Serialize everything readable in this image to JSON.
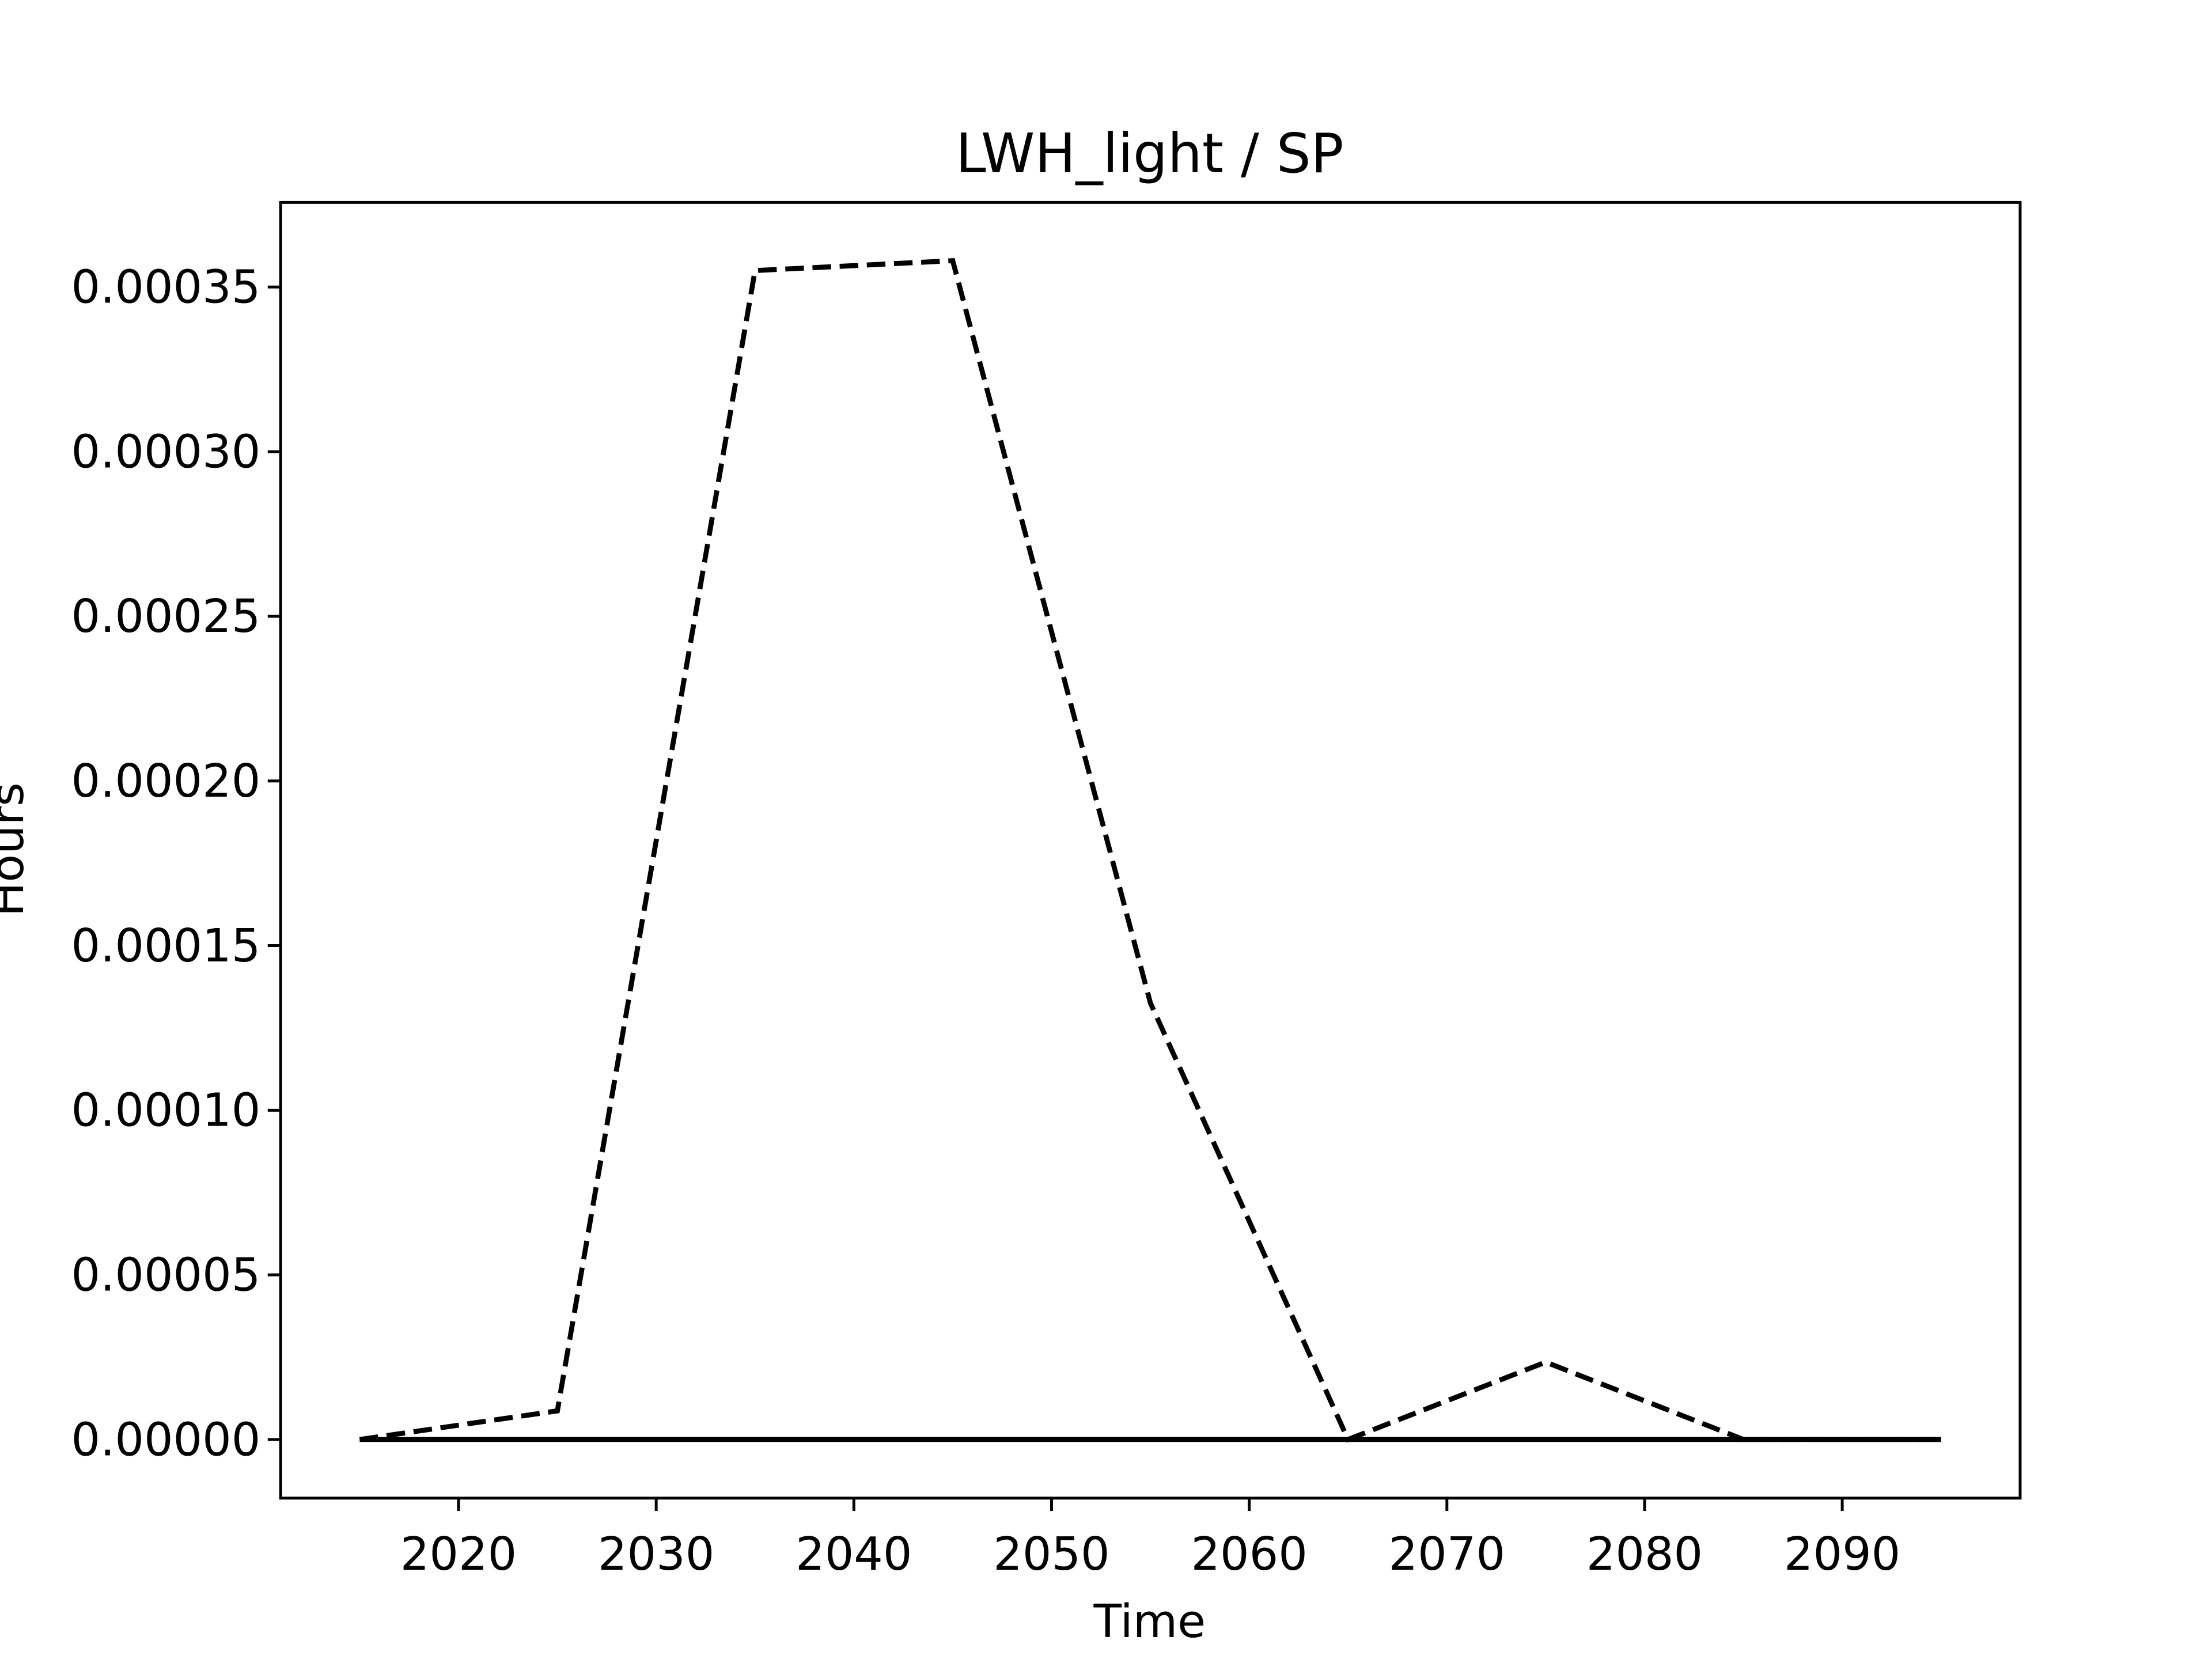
{
  "chart_data": {
    "type": "line",
    "title": "LWH_light / SP",
    "xlabel": "Time",
    "ylabel": "Hours",
    "x": [
      2015,
      2025,
      2035,
      2045,
      2055,
      2065,
      2075,
      2085,
      2095
    ],
    "series": [
      {
        "color": "#000000",
        "dash": true,
        "values": [
          0,
          8.7e-06,
          0.000355,
          0.000358,
          0.0001326,
          0,
          2.35e-05,
          0,
          0
        ]
      },
      {
        "color": "#000000",
        "dash": false,
        "values": [
          0,
          0,
          0,
          0,
          0,
          0,
          0,
          0,
          0
        ]
      }
    ],
    "xlim": [
      2011,
      2099
    ],
    "xticks": [
      2020,
      2030,
      2040,
      2050,
      2060,
      2070,
      2080,
      2090
    ],
    "ylim": [
      -1.78e-05,
      0.0003757
    ],
    "yticks": [
      {
        "value": 0,
        "label": "0.00000"
      },
      {
        "value": 5e-05,
        "label": "0.00005"
      },
      {
        "value": 0.0001,
        "label": "0.00010"
      },
      {
        "value": 0.00015,
        "label": "0.00015"
      },
      {
        "value": 0.0002,
        "label": "0.00020"
      },
      {
        "value": 0.00025,
        "label": "0.00025"
      },
      {
        "value": 0.0003,
        "label": "0.00030"
      },
      {
        "value": 0.00035,
        "label": "0.00035"
      }
    ],
    "grid": false
  }
}
